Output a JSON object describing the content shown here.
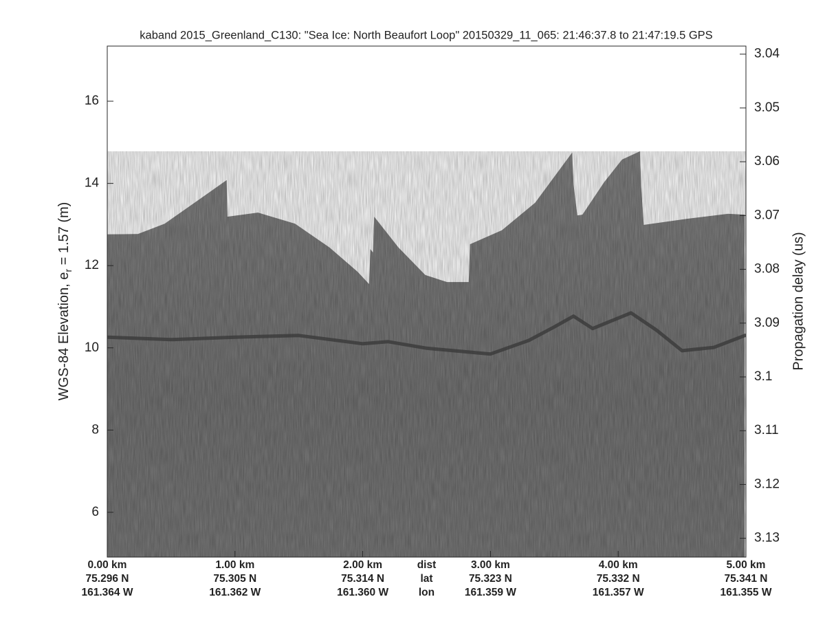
{
  "chart_data": {
    "type": "echogram",
    "title": "kaband 2015_Greenland_C130: \"Sea Ice: North Beaufort Loop\"  20150329_11_065: 21:46:37.8 to 21:47:19.5 GPS",
    "y_label": [
      "WGS-84 Elevation, e",
      "r",
      " = 1.57 (m)"
    ],
    "y2_label": "Propagation delay (us)",
    "xlim": [
      0,
      5.0
    ],
    "xticks": [
      {
        "value": 0,
        "label": "0.00 km"
      },
      {
        "value": 1,
        "label": "1.00 km"
      },
      {
        "value": 2,
        "label": "2.00 km"
      },
      {
        "value": 3,
        "label": "3.00 km"
      },
      {
        "value": 4,
        "label": "4.00 km"
      },
      {
        "value": 5,
        "label": "5.00 km"
      }
    ],
    "x_lat_labels": [
      "75.296 N",
      "75.305 N",
      "75.314 N",
      "75.323 N",
      "75.332 N",
      "75.341 N"
    ],
    "x_lon_labels": [
      "161.364 W",
      "161.362 W",
      "161.360 W",
      "161.359 W",
      "161.357 W",
      "161.355 W"
    ],
    "row_labels": [
      "dist",
      "lat",
      "lon"
    ],
    "row_label_x": 2.5,
    "ylim": [
      4.91,
      17.34
    ],
    "yticks": [
      6,
      8,
      10,
      12,
      14,
      16
    ],
    "y2lim": [
      3.1335,
      3.0385
    ],
    "y2ticks": [
      3.04,
      3.05,
      3.06,
      3.07,
      3.08,
      3.09,
      3.1,
      3.11,
      3.12,
      3.13
    ],
    "surface": {
      "x": [
        0,
        0.24,
        0.45,
        0.72,
        0.935,
        0.94,
        1.18,
        1.47,
        1.74,
        1.96,
        2.05,
        2.06,
        2.08,
        2.09,
        2.28,
        2.49,
        2.66,
        2.83,
        2.84,
        3.09,
        3.35,
        3.64,
        3.65,
        3.68,
        3.72,
        3.89,
        4.03,
        4.17,
        4.18,
        4.2,
        4.54,
        4.86,
        4.99
      ],
      "values": [
        12.76,
        12.77,
        13.02,
        13.61,
        14.08,
        13.19,
        13.29,
        13.02,
        12.44,
        11.85,
        11.55,
        12.4,
        12.32,
        13.19,
        12.44,
        11.77,
        11.6,
        11.6,
        12.52,
        12.86,
        13.53,
        14.75,
        13.98,
        13.22,
        13.24,
        14.03,
        14.58,
        14.78,
        13.91,
        12.99,
        13.14,
        13.26,
        13.24
      ],
      "color": "#7d7d7d"
    },
    "layer": {
      "x": [
        0,
        0.5,
        1.0,
        1.5,
        2.0,
        2.2,
        2.5,
        3.0,
        3.3,
        3.5,
        3.65,
        3.8,
        4.1,
        4.3,
        4.5,
        4.75,
        5.0
      ],
      "values": [
        10.26,
        10.2,
        10.26,
        10.3,
        10.1,
        10.15,
        9.99,
        9.85,
        10.18,
        10.51,
        10.77,
        10.47,
        10.85,
        10.43,
        9.93,
        10.01,
        10.31
      ],
      "color": "#3a3a3a"
    }
  }
}
